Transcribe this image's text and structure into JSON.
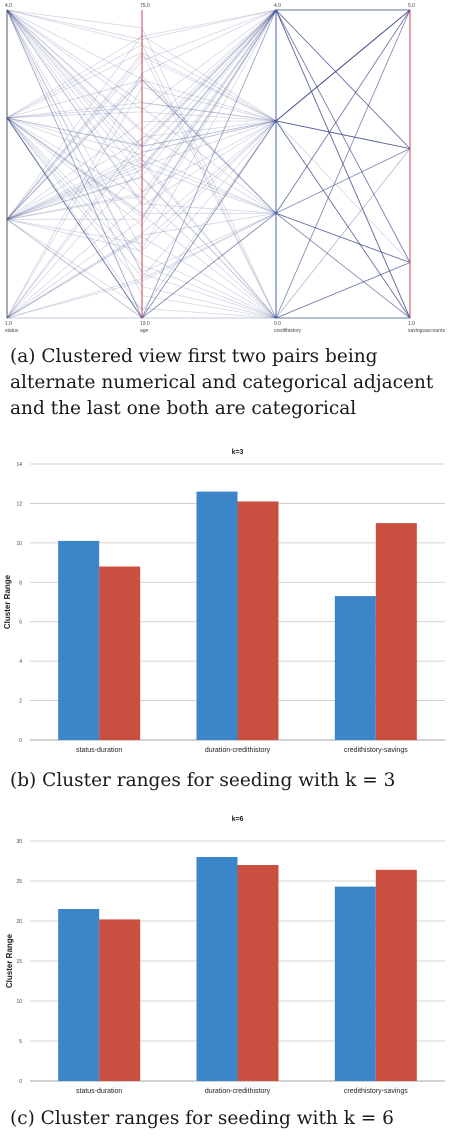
{
  "parallel_coords": {
    "axes": [
      {
        "name": "status",
        "top": "4.0",
        "bottom": "1.0"
      },
      {
        "name": "age",
        "top": "75.0",
        "bottom": "19.0"
      },
      {
        "name": "credithistory",
        "top": "4.0",
        "bottom": "0.0"
      },
      {
        "name": "savingsaccounts",
        "top": "5.0",
        "bottom": "1.0"
      }
    ],
    "colors": {
      "line": "#3a4a8a",
      "first_axis": "#555555",
      "red_axis": "#d04050",
      "blue_axis": "#4060c0"
    }
  },
  "captions": {
    "a": "(a)  Clustered view first two pairs being alternate numerical and categorical adjacent and the last one both are categorical",
    "b": "(b)  Cluster ranges for seeding with k = 3",
    "c": "(c)  Cluster ranges for seeding with k = 6"
  },
  "chart_data": [
    {
      "type": "bar",
      "title": "k=3",
      "ylabel": "Cluster Range",
      "xlabel": "",
      "categories": [
        "status-duration",
        "duration-credithistory",
        "credithistory-savings"
      ],
      "series": [
        {
          "values": [
            10.1,
            12.6,
            7.3
          ],
          "color": "#3a86c8"
        },
        {
          "values": [
            8.8,
            12.1,
            11.0
          ],
          "color": "#cb4f41"
        }
      ],
      "ylim": [
        0,
        14
      ],
      "yticks": [
        "0",
        "2",
        "4",
        "6",
        "8",
        "10",
        "12",
        "14"
      ],
      "grid": true
    },
    {
      "type": "bar",
      "title": "k=6",
      "ylabel": "Cluster Range",
      "xlabel": "",
      "categories": [
        "status-duration",
        "duration-credithistory",
        "credithistory-savings"
      ],
      "series": [
        {
          "values": [
            21.5,
            28.0,
            24.3
          ],
          "color": "#3a86c8"
        },
        {
          "values": [
            20.2,
            27.0,
            26.4
          ],
          "color": "#cb4f41"
        }
      ],
      "ylim": [
        0,
        30
      ],
      "yticks": [
        "0",
        "5",
        "10",
        "15",
        "20",
        "25",
        "30"
      ],
      "grid": true
    }
  ]
}
